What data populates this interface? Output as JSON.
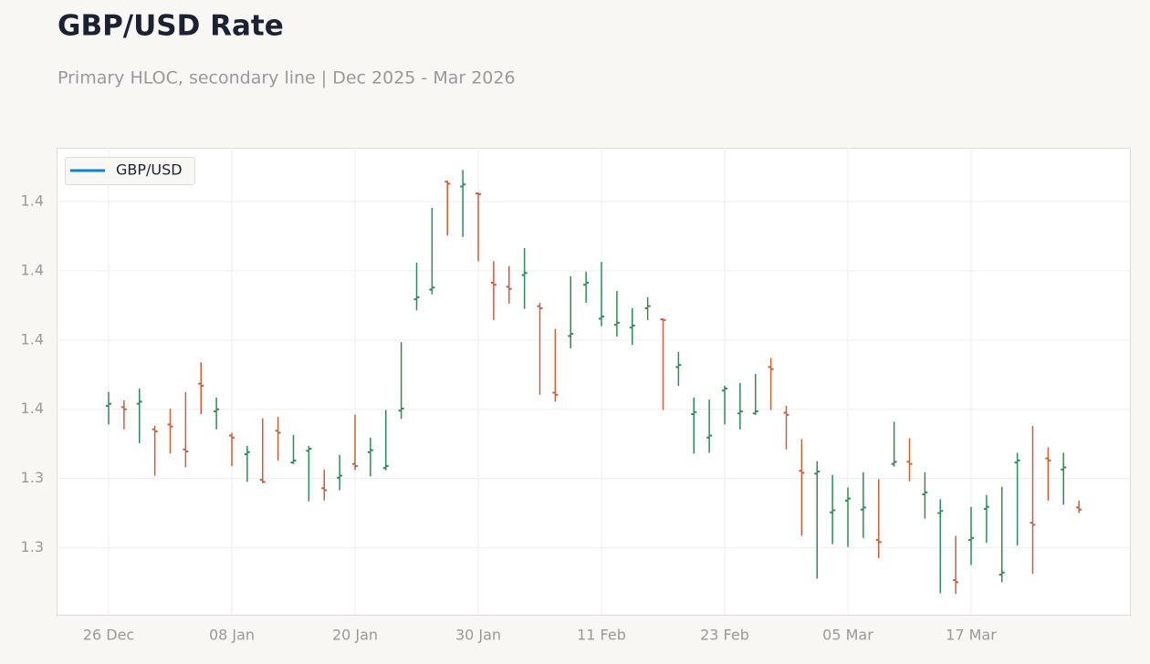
{
  "chart_data": {
    "type": "ohlc",
    "title": "GBP/USD Rate",
    "subtitle": "Primary HLOC, secondary line | Dec 2025 - Mar 2026",
    "categories": [
      "26 Dec",
      null,
      null,
      null,
      null,
      null,
      null,
      null,
      "08 Jan",
      null,
      null,
      null,
      null,
      null,
      null,
      null,
      "20 Jan",
      null,
      null,
      null,
      null,
      null,
      null,
      null,
      "30 Jan",
      null,
      null,
      null,
      null,
      null,
      null,
      null,
      "11 Feb",
      null,
      null,
      null,
      null,
      null,
      null,
      null,
      "23 Feb",
      null,
      null,
      null,
      null,
      null,
      null,
      null,
      "05 Mar",
      null,
      null,
      null,
      null,
      null,
      null,
      null,
      "17 Mar",
      null,
      null,
      null,
      null,
      null,
      null,
      null
    ],
    "series": [
      {
        "name": "GBP/USD",
        "color": "#0a84c6",
        "up_color": "#2e8b57",
        "down_color": "#c8603a",
        "open": [
          1.3505,
          1.3503,
          1.3508,
          1.3471,
          1.3478,
          1.3442,
          1.3537,
          1.3497,
          1.3462,
          1.3435,
          1.3398,
          1.3469,
          1.3423,
          1.344,
          1.3386,
          1.3401,
          1.3421,
          1.3438,
          1.3415,
          1.3498,
          1.3659,
          1.3673,
          1.3829,
          1.3822,
          1.3812,
          1.3683,
          1.3677,
          1.3694,
          1.3649,
          1.3524,
          1.3606,
          1.368,
          1.3631,
          1.3622,
          1.3618,
          1.3646,
          1.363,
          1.3561,
          1.3493,
          1.3459,
          1.3527,
          1.3494,
          1.3494,
          1.3561,
          1.3495,
          1.3411,
          1.3407,
          1.3351,
          1.3368,
          1.3355,
          1.3311,
          1.3421,
          1.3424,
          1.3377,
          1.335,
          1.3253,
          1.3311,
          1.3356,
          1.3261,
          1.3423,
          1.3336,
          1.3429,
          1.3413,
          1.3358
        ],
        "high": [
          1.3525,
          1.3513,
          1.353,
          1.3476,
          1.3501,
          1.3525,
          1.3568,
          1.3517,
          1.3466,
          1.3447,
          1.3487,
          1.3489,
          1.3463,
          1.3447,
          1.3413,
          1.3434,
          1.3492,
          1.3459,
          1.3499,
          1.3597,
          1.3712,
          1.3791,
          1.383,
          1.3846,
          1.3813,
          1.3714,
          1.3707,
          1.3733,
          1.3654,
          1.3616,
          1.3692,
          1.3699,
          1.3713,
          1.3671,
          1.3646,
          1.3662,
          1.3631,
          1.3583,
          1.3517,
          1.3514,
          1.3534,
          1.3538,
          1.3551,
          1.3574,
          1.3505,
          1.3457,
          1.3425,
          1.3405,
          1.3387,
          1.3409,
          1.3399,
          1.3482,
          1.3458,
          1.3409,
          1.337,
          1.3317,
          1.3359,
          1.3376,
          1.3388,
          1.3437,
          1.3476,
          1.3445,
          1.3437,
          1.3368
        ],
        "low": [
          1.3478,
          1.3471,
          1.3451,
          1.3404,
          1.3436,
          1.3416,
          1.3493,
          1.3471,
          1.3418,
          1.3395,
          1.3393,
          1.3426,
          1.3421,
          1.3367,
          1.3368,
          1.3383,
          1.3412,
          1.3403,
          1.3412,
          1.3486,
          1.3643,
          1.3666,
          1.3751,
          1.3749,
          1.3714,
          1.3629,
          1.3653,
          1.3645,
          1.3521,
          1.3511,
          1.3588,
          1.3654,
          1.362,
          1.3605,
          1.3593,
          1.3629,
          1.3499,
          1.3534,
          1.3436,
          1.3437,
          1.3478,
          1.3471,
          1.3492,
          1.3499,
          1.3442,
          1.3317,
          1.3255,
          1.3305,
          1.3301,
          1.3314,
          1.3285,
          1.3417,
          1.3396,
          1.3342,
          1.3234,
          1.3233,
          1.3275,
          1.3307,
          1.325,
          1.3303,
          1.3262,
          1.3368,
          1.3362,
          1.335
        ],
        "close": [
          1.3508,
          1.35,
          1.3511,
          1.3468,
          1.3475,
          1.3439,
          1.3534,
          1.35,
          1.3459,
          1.3438,
          1.3395,
          1.3466,
          1.3426,
          1.3443,
          1.3383,
          1.3404,
          1.3418,
          1.3441,
          1.3418,
          1.3501,
          1.3662,
          1.3676,
          1.3826,
          1.3825,
          1.3811,
          1.368,
          1.3674,
          1.3697,
          1.3646,
          1.3521,
          1.3609,
          1.3683,
          1.3634,
          1.3625,
          1.3621,
          1.3649,
          1.3629,
          1.3564,
          1.3496,
          1.3462,
          1.353,
          1.3497,
          1.3497,
          1.3558,
          1.3492,
          1.3408,
          1.341,
          1.3354,
          1.3371,
          1.3358,
          1.3308,
          1.3424,
          1.3421,
          1.338,
          1.3353,
          1.325,
          1.3314,
          1.3359,
          1.3264,
          1.3426,
          1.3333,
          1.3426,
          1.3416,
          1.3355
        ]
      }
    ],
    "ylim": [
      1.3203,
      1.3878
    ],
    "yticks": [
      {
        "value": 1.38,
        "label": "1.4"
      },
      {
        "value": 1.37,
        "label": "1.4"
      },
      {
        "value": 1.36,
        "label": "1.4"
      },
      {
        "value": 1.35,
        "label": "1.4"
      },
      {
        "value": 1.34,
        "label": "1.3"
      },
      {
        "value": 1.33,
        "label": "1.3"
      }
    ],
    "grid": true,
    "legend": "upper left"
  }
}
